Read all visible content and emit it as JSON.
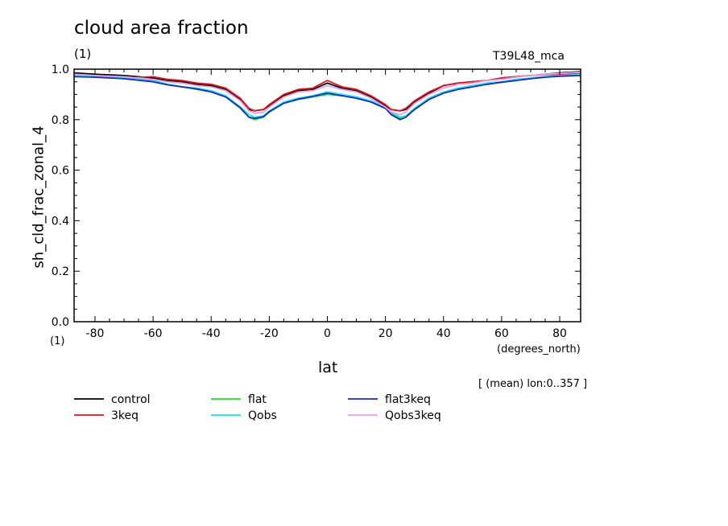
{
  "header": {
    "title": "cloud area fraction",
    "units_top": "(1)",
    "run_id": "T39L48_mca",
    "units_bottom": "(1)",
    "x_units": "(degrees_north)",
    "mean_note": "[ (mean) lon:0..357 ]"
  },
  "chart_data": {
    "type": "line",
    "title": "cloud area fraction",
    "xlabel": "lat",
    "ylabel": "sh_cld_frac_zonal_4",
    "xlim": [
      -87.2,
      87.2
    ],
    "ylim": [
      0.0,
      1.0
    ],
    "x_ticks": [
      -80,
      -60,
      -40,
      -20,
      0,
      20,
      40,
      60,
      80
    ],
    "x_tick_labels": [
      "-80",
      "-60",
      "-40",
      "-20",
      "0",
      "20",
      "40",
      "60",
      "80"
    ],
    "y_ticks": [
      0.0,
      0.2,
      0.4,
      0.6,
      0.8,
      1.0
    ],
    "y_tick_labels": [
      "0.0",
      "0.2",
      "0.4",
      "0.6",
      "0.8",
      "1.0"
    ],
    "grid": false,
    "legend_position": "bottom",
    "x": [
      -87,
      -80,
      -70,
      -60,
      -55,
      -50,
      -45,
      -40,
      -35,
      -30,
      -27,
      -25,
      -22,
      -20,
      -15,
      -10,
      -5,
      0,
      5,
      10,
      15,
      20,
      22,
      25,
      27,
      30,
      35,
      40,
      45,
      50,
      55,
      60,
      65,
      70,
      75,
      80,
      87
    ],
    "series": [
      {
        "name": "control",
        "color": "#000000",
        "values": [
          0.985,
          0.98,
          0.975,
          0.965,
          0.955,
          0.95,
          0.94,
          0.935,
          0.92,
          0.88,
          0.84,
          0.835,
          0.84,
          0.855,
          0.895,
          0.915,
          0.92,
          0.945,
          0.925,
          0.915,
          0.89,
          0.855,
          0.84,
          0.835,
          0.84,
          0.87,
          0.905,
          0.935,
          0.945,
          0.95,
          0.955,
          0.965,
          0.97,
          0.975,
          0.98,
          0.985,
          0.99
        ]
      },
      {
        "name": "3keq",
        "color": "#e0141e",
        "values": [
          0.975,
          0.97,
          0.965,
          0.97,
          0.96,
          0.955,
          0.945,
          0.94,
          0.925,
          0.885,
          0.845,
          0.835,
          0.84,
          0.86,
          0.9,
          0.92,
          0.925,
          0.955,
          0.93,
          0.92,
          0.895,
          0.86,
          0.84,
          0.835,
          0.845,
          0.875,
          0.91,
          0.935,
          0.945,
          0.95,
          0.955,
          0.965,
          0.97,
          0.975,
          0.978,
          0.98,
          0.985
        ]
      },
      {
        "name": "flat",
        "color": "#19e619",
        "values": [
          0.975,
          0.97,
          0.965,
          0.955,
          0.94,
          0.93,
          0.92,
          0.91,
          0.89,
          0.845,
          0.81,
          0.8,
          0.81,
          0.83,
          0.865,
          0.88,
          0.89,
          0.9,
          0.895,
          0.885,
          0.87,
          0.845,
          0.825,
          0.805,
          0.81,
          0.84,
          0.88,
          0.905,
          0.92,
          0.93,
          0.94,
          0.95,
          0.955,
          0.965,
          0.97,
          0.975,
          0.975
        ]
      },
      {
        "name": "Qobs",
        "color": "#19e6e6",
        "values": [
          0.975,
          0.97,
          0.965,
          0.955,
          0.94,
          0.93,
          0.925,
          0.915,
          0.895,
          0.85,
          0.82,
          0.81,
          0.815,
          0.835,
          0.87,
          0.885,
          0.895,
          0.91,
          0.9,
          0.89,
          0.875,
          0.85,
          0.83,
          0.81,
          0.815,
          0.845,
          0.885,
          0.91,
          0.925,
          0.935,
          0.945,
          0.95,
          0.96,
          0.965,
          0.97,
          0.975,
          0.978
        ]
      },
      {
        "name": "flat3keq",
        "color": "#1428c8",
        "values": [
          0.97,
          0.968,
          0.962,
          0.95,
          0.938,
          0.93,
          0.922,
          0.91,
          0.89,
          0.848,
          0.81,
          0.805,
          0.812,
          0.832,
          0.865,
          0.882,
          0.892,
          0.905,
          0.895,
          0.885,
          0.87,
          0.845,
          0.82,
          0.8,
          0.81,
          0.84,
          0.88,
          0.905,
          0.92,
          0.93,
          0.94,
          0.948,
          0.955,
          0.962,
          0.968,
          0.972,
          0.975
        ]
      },
      {
        "name": "Qobs3keq",
        "color": "#e6a0e6",
        "values": [
          0.98,
          0.975,
          0.97,
          0.96,
          0.95,
          0.945,
          0.935,
          0.93,
          0.915,
          0.875,
          0.835,
          0.825,
          0.83,
          0.85,
          0.89,
          0.91,
          0.915,
          0.935,
          0.92,
          0.91,
          0.885,
          0.85,
          0.83,
          0.82,
          0.83,
          0.865,
          0.9,
          0.925,
          0.94,
          0.945,
          0.955,
          0.96,
          0.968,
          0.975,
          0.98,
          0.983,
          0.988
        ]
      }
    ]
  }
}
